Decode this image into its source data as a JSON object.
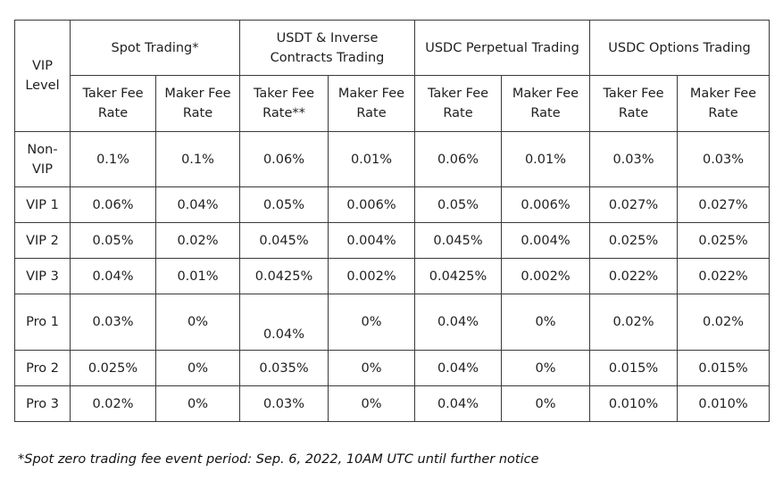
{
  "header": {
    "level_label": "VIP Level",
    "groups": [
      "Spot Trading*",
      "USDT & Inverse Contracts Trading",
      "USDC Perpetual Trading",
      "USDC Options Trading"
    ],
    "sub": [
      "Taker Fee Rate",
      "Maker Fee Rate",
      "Taker Fee Rate**",
      "Maker Fee Rate",
      "Taker Fee Rate",
      "Maker Fee Rate",
      "Taker Fee Rate",
      "Maker Fee Rate"
    ]
  },
  "rows": [
    {
      "level": "Non-VIP",
      "values": [
        "0.1%",
        "0.1%",
        "0.06%",
        "0.01%",
        "0.06%",
        "0.01%",
        "0.03%",
        "0.03%"
      ]
    },
    {
      "level": "VIP 1",
      "values": [
        "0.06%",
        "0.04%",
        "0.05%",
        "0.006%",
        "0.05%",
        "0.006%",
        "0.027%",
        "0.027%"
      ]
    },
    {
      "level": "VIP 2",
      "values": [
        "0.05%",
        "0.02%",
        "0.045%",
        "0.004%",
        "0.045%",
        "0.004%",
        "0.025%",
        "0.025%"
      ]
    },
    {
      "level": "VIP 3",
      "values": [
        "0.04%",
        "0.01%",
        "0.0425%",
        "0.002%",
        "0.0425%",
        "0.002%",
        "0.022%",
        "0.022%"
      ]
    },
    {
      "level": "Pro 1",
      "values": [
        "0.03%",
        "0%",
        "0.04%",
        "0%",
        "0.04%",
        "0%",
        "0.02%",
        "0.02%"
      ]
    },
    {
      "level": "Pro 2",
      "values": [
        "0.025%",
        "0%",
        "0.035%",
        "0%",
        "0.04%",
        "0%",
        "0.015%",
        "0.015%"
      ]
    },
    {
      "level": "Pro 3",
      "values": [
        "0.02%",
        "0%",
        "0.03%",
        "0%",
        "0.04%",
        "0%",
        "0.010%",
        "0.010%"
      ]
    }
  ],
  "footnote": "*Spot zero trading fee event period: Sep. 6, 2022, 10AM UTC until further notice"
}
